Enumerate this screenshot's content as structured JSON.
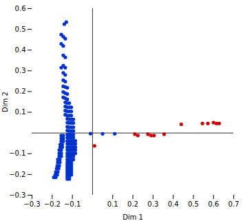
{
  "chart_data": {
    "type": "scatter",
    "xlabel": "Dim 1",
    "ylabel": "Dim 2",
    "xlim": [
      -0.3,
      0.7
    ],
    "ylim": [
      -0.3,
      0.6
    ],
    "xticks": [
      -0.3,
      -0.2,
      -0.1,
      0.1,
      0.2,
      0.3,
      0.4,
      0.5,
      0.6,
      0.7
    ],
    "yticks": [
      -0.3,
      -0.2,
      -0.1,
      0.1,
      0.2,
      0.3,
      0.4,
      0.5,
      0.6
    ],
    "series": [
      {
        "color": "#0033CC",
        "points": [
          [
            -0.14,
            0.525
          ],
          [
            -0.13,
            0.535
          ],
          [
            -0.155,
            0.475
          ],
          [
            -0.145,
            0.465
          ],
          [
            -0.135,
            0.455
          ],
          [
            -0.155,
            0.43
          ],
          [
            -0.145,
            0.42
          ],
          [
            -0.145,
            0.375
          ],
          [
            -0.135,
            0.365
          ],
          [
            -0.145,
            0.325
          ],
          [
            -0.135,
            0.315
          ],
          [
            -0.155,
            0.315
          ],
          [
            -0.145,
            0.29
          ],
          [
            -0.135,
            0.28
          ],
          [
            -0.145,
            0.255
          ],
          [
            -0.135,
            0.248
          ],
          [
            -0.145,
            0.225
          ],
          [
            -0.135,
            0.222
          ],
          [
            -0.125,
            0.218
          ],
          [
            -0.145,
            0.198
          ],
          [
            -0.135,
            0.192
          ],
          [
            -0.125,
            0.188
          ],
          [
            -0.145,
            0.172
          ],
          [
            -0.135,
            0.168
          ],
          [
            -0.125,
            0.162
          ],
          [
            -0.135,
            0.148
          ],
          [
            -0.125,
            0.144
          ],
          [
            -0.115,
            0.144
          ],
          [
            -0.135,
            0.128
          ],
          [
            -0.125,
            0.124
          ],
          [
            -0.115,
            0.124
          ],
          [
            -0.105,
            0.124
          ],
          [
            -0.135,
            0.108
          ],
          [
            -0.125,
            0.104
          ],
          [
            -0.115,
            0.104
          ],
          [
            -0.105,
            0.104
          ],
          [
            -0.135,
            0.088
          ],
          [
            -0.125,
            0.084
          ],
          [
            -0.115,
            0.084
          ],
          [
            -0.105,
            0.084
          ],
          [
            -0.125,
            0.068
          ],
          [
            -0.115,
            0.066
          ],
          [
            -0.105,
            0.066
          ],
          [
            -0.095,
            0.066
          ],
          [
            -0.125,
            0.05
          ],
          [
            -0.115,
            0.048
          ],
          [
            -0.105,
            0.048
          ],
          [
            -0.095,
            0.048
          ],
          [
            -0.125,
            0.03
          ],
          [
            -0.115,
            0.028
          ],
          [
            -0.105,
            0.028
          ],
          [
            -0.095,
            0.028
          ],
          [
            -0.125,
            0.012
          ],
          [
            -0.115,
            0.01
          ],
          [
            -0.105,
            0.01
          ],
          [
            -0.095,
            0.01
          ],
          [
            -0.125,
            -0.008
          ],
          [
            -0.115,
            -0.008
          ],
          [
            -0.105,
            -0.008
          ],
          [
            -0.095,
            -0.008
          ],
          [
            -0.125,
            -0.022
          ],
          [
            -0.115,
            -0.022
          ],
          [
            -0.105,
            -0.022
          ],
          [
            -0.095,
            -0.022
          ],
          [
            -0.125,
            -0.038
          ],
          [
            -0.115,
            -0.038
          ],
          [
            -0.105,
            -0.038
          ],
          [
            -0.095,
            -0.038
          ],
          [
            -0.085,
            -0.038
          ],
          [
            -0.125,
            -0.052
          ],
          [
            -0.115,
            -0.052
          ],
          [
            -0.105,
            -0.052
          ],
          [
            -0.095,
            -0.052
          ],
          [
            -0.085,
            -0.052
          ],
          [
            -0.125,
            -0.068
          ],
          [
            -0.115,
            -0.068
          ],
          [
            -0.105,
            -0.068
          ],
          [
            -0.095,
            -0.068
          ],
          [
            -0.085,
            -0.068
          ],
          [
            -0.125,
            -0.082
          ],
          [
            -0.115,
            -0.082
          ],
          [
            -0.105,
            -0.082
          ],
          [
            -0.095,
            -0.082
          ],
          [
            -0.085,
            -0.082
          ],
          [
            -0.125,
            -0.098
          ],
          [
            -0.115,
            -0.098
          ],
          [
            -0.105,
            -0.098
          ],
          [
            -0.095,
            -0.098
          ],
          [
            -0.085,
            -0.098
          ],
          [
            -0.125,
            -0.112
          ],
          [
            -0.115,
            -0.112
          ],
          [
            -0.105,
            -0.112
          ],
          [
            -0.095,
            -0.112
          ],
          [
            -0.125,
            -0.128
          ],
          [
            -0.115,
            -0.128
          ],
          [
            -0.105,
            -0.128
          ],
          [
            -0.095,
            -0.128
          ],
          [
            -0.125,
            -0.142
          ],
          [
            -0.115,
            -0.142
          ],
          [
            -0.105,
            -0.142
          ],
          [
            -0.125,
            -0.152
          ],
          [
            -0.115,
            -0.152
          ],
          [
            -0.105,
            -0.152
          ],
          [
            -0.125,
            -0.162
          ],
          [
            -0.115,
            -0.162
          ],
          [
            -0.105,
            -0.162
          ],
          [
            -0.125,
            -0.172
          ],
          [
            -0.115,
            -0.172
          ],
          [
            -0.105,
            -0.172
          ],
          [
            -0.125,
            -0.182
          ],
          [
            -0.115,
            -0.182
          ],
          [
            -0.105,
            -0.182
          ],
          [
            -0.125,
            -0.192
          ],
          [
            -0.115,
            -0.192
          ],
          [
            -0.105,
            -0.192
          ],
          [
            -0.125,
            -0.202
          ],
          [
            -0.115,
            -0.202
          ],
          [
            -0.105,
            -0.202
          ],
          [
            -0.125,
            -0.212
          ],
          [
            -0.115,
            -0.212
          ],
          [
            -0.125,
            -0.222
          ],
          [
            -0.115,
            -0.222
          ],
          [
            -0.145,
            -0.012
          ],
          [
            -0.155,
            -0.012
          ],
          [
            -0.145,
            -0.026
          ],
          [
            -0.155,
            -0.026
          ],
          [
            -0.145,
            -0.04
          ],
          [
            -0.155,
            -0.04
          ],
          [
            -0.16,
            -0.055
          ],
          [
            -0.15,
            -0.055
          ],
          [
            -0.16,
            -0.068
          ],
          [
            -0.15,
            -0.068
          ],
          [
            -0.165,
            -0.082
          ],
          [
            -0.155,
            -0.082
          ],
          [
            -0.165,
            -0.098
          ],
          [
            -0.155,
            -0.098
          ],
          [
            -0.165,
            -0.112
          ],
          [
            -0.155,
            -0.112
          ],
          [
            -0.172,
            -0.128
          ],
          [
            -0.162,
            -0.128
          ],
          [
            -0.172,
            -0.142
          ],
          [
            -0.162,
            -0.142
          ],
          [
            -0.175,
            -0.158
          ],
          [
            -0.165,
            -0.158
          ],
          [
            -0.178,
            -0.172
          ],
          [
            -0.168,
            -0.172
          ],
          [
            -0.182,
            -0.188
          ],
          [
            -0.172,
            -0.188
          ],
          [
            -0.185,
            -0.202
          ],
          [
            -0.175,
            -0.202
          ],
          [
            -0.192,
            -0.214
          ],
          [
            -0.182,
            -0.214
          ],
          [
            0.05,
            -0.004
          ],
          [
            0.11,
            -0.004
          ],
          [
            -0.01,
            -0.003
          ]
        ]
      },
      {
        "color": "#CC0000",
        "points": [
          [
            0.01,
            -0.062
          ],
          [
            0.21,
            -0.006
          ],
          [
            0.225,
            -0.012
          ],
          [
            0.275,
            -0.006
          ],
          [
            0.29,
            -0.012
          ],
          [
            0.305,
            -0.012
          ],
          [
            0.355,
            -0.006
          ],
          [
            0.44,
            0.042
          ],
          [
            0.545,
            0.046
          ],
          [
            0.572,
            0.046
          ],
          [
            0.6,
            0.05
          ],
          [
            0.615,
            0.046
          ],
          [
            0.628,
            0.046
          ]
        ]
      }
    ]
  }
}
